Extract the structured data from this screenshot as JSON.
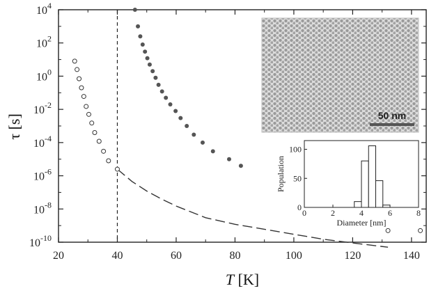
{
  "chart_data": [
    {
      "type": "scatter",
      "xlabel": "T [K]",
      "ylabel": "τ [s]",
      "xlim": [
        20,
        145
      ],
      "ylim": [
        1e-10,
        10000.0
      ],
      "yscale": "log",
      "x_ticks": [
        "20",
        "40",
        "60",
        "80",
        "100",
        "120",
        "140"
      ],
      "y_ticks": [
        {
          "base": "10",
          "exp": "4"
        },
        {
          "base": "10",
          "exp": "2"
        },
        {
          "base": "10",
          "exp": "0"
        },
        {
          "base": "10",
          "exp": "-2"
        },
        {
          "base": "10",
          "exp": "-4"
        },
        {
          "base": "10",
          "exp": "-6"
        },
        {
          "base": "10",
          "exp": "-8"
        },
        {
          "base": "10",
          "exp": "-10"
        }
      ],
      "vertical_line_x": 40,
      "series": [
        {
          "marker": "open-circle",
          "color": "#333333",
          "x": [
            25.5,
            26.3,
            27.0,
            27.8,
            28.6,
            29.4,
            30.3,
            31.3,
            32.3,
            33.8,
            35.3,
            37.0,
            40.0,
            132.0,
            143.0
          ],
          "y": [
            8,
            2.5,
            0.7,
            0.2,
            0.06,
            0.015,
            0.005,
            0.0015,
            0.0004,
            0.00012,
            3e-05,
            8e-06,
            2.5e-06,
            5e-10,
            5e-10
          ]
        },
        {
          "marker": "filled-circle",
          "color": "#555555",
          "x": [
            46.0,
            47.0,
            47.8,
            48.6,
            49.4,
            50.2,
            51.0,
            52.0,
            53.0,
            54.0,
            55.2,
            56.5,
            58.0,
            59.8,
            61.5,
            63.6,
            66.0,
            69.0,
            72.5,
            78.0,
            82.0
          ],
          "y": [
            10000,
            1000,
            250,
            80,
            30,
            12,
            5,
            2,
            0.8,
            0.3,
            0.12,
            0.05,
            0.02,
            0.008,
            0.003,
            0.001,
            0.0003,
            0.0001,
            3e-05,
            1e-05,
            4e-06
          ]
        },
        {
          "marker": "dashed-line",
          "color": "#333333",
          "x": [
            40,
            45,
            50,
            55,
            60,
            70,
            80,
            90,
            100,
            110,
            120,
            132
          ],
          "y": [
            2.5e-06,
            4.5e-07,
            1.2e-07,
            4e-08,
            1.5e-08,
            3e-09,
            1.2e-09,
            6e-10,
            3e-10,
            1.5e-10,
            9e-11,
            5e-11
          ]
        }
      ]
    },
    {
      "type": "bar",
      "xlabel": "Diameter [nm]",
      "ylabel": "Population",
      "xlim": [
        0,
        8
      ],
      "ylim": [
        0,
        115
      ],
      "x_ticks": [
        "0",
        "2",
        "4",
        "6",
        "8"
      ],
      "y_ticks": [
        "0",
        "50",
        "100"
      ],
      "bins": [
        {
          "from": 3.5,
          "to": 4.0,
          "value": 10
        },
        {
          "from": 4.0,
          "to": 4.5,
          "value": 80
        },
        {
          "from": 4.5,
          "to": 5.0,
          "value": 106
        },
        {
          "from": 5.0,
          "to": 5.5,
          "value": 46
        },
        {
          "from": 5.5,
          "to": 6.0,
          "value": 4
        }
      ]
    }
  ],
  "micrograph": {
    "scale_bar_label": "50 nm"
  }
}
